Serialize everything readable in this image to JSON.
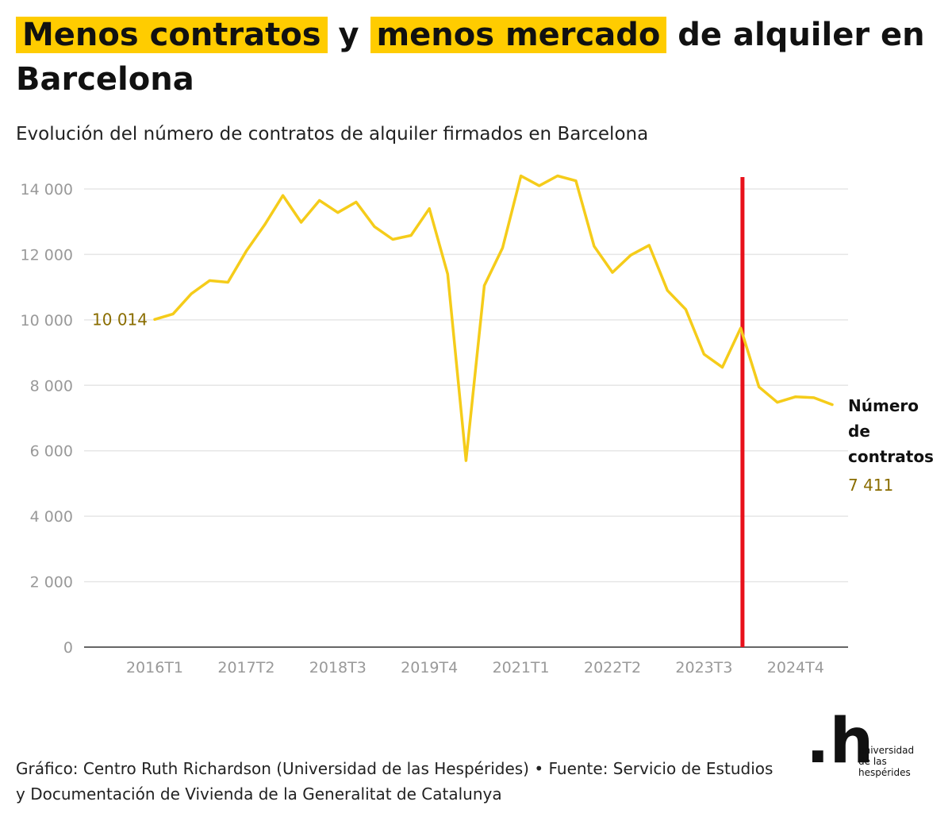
{
  "title": {
    "highlight1": "Menos contratos",
    "connector": "y",
    "highlight2": "menos mercado",
    "rest": "de alquiler en Barcelona"
  },
  "subtitle": "Evolución del número de contratos de alquiler firmados en Barcelona",
  "footer": "Gráfico: Centro Ruth Richardson (Universidad de las Hespérides) • Fuente: Servicio de Estudios y Documentación de Vivienda de la Generalitat de Catalunya",
  "logo": {
    "mark": ".h",
    "line1": "universidad",
    "line2": "de las",
    "line3": "hespérides"
  },
  "colors": {
    "accent": "#ffcc00",
    "line": "#f5cc1a",
    "marker": "#e8111b",
    "label": "#8a6d00",
    "grid": "#e6e6e6",
    "axis_text": "#999999"
  },
  "chart_data": {
    "type": "line",
    "series": [
      {
        "name": "Número de contratos",
        "values": [
          10014,
          10180,
          10800,
          11200,
          11150,
          12100,
          12900,
          13800,
          12980,
          13650,
          13280,
          13600,
          12850,
          12460,
          12580,
          13400,
          11400,
          5700,
          11050,
          12200,
          14400,
          14100,
          14400,
          14250,
          12250,
          11450,
          11980,
          12280,
          10900,
          10320,
          8950,
          8550,
          9750,
          7950,
          7480,
          7650,
          7620,
          7411
        ]
      }
    ],
    "x_ticks": [
      "2016T1",
      "2017T2",
      "2018T3",
      "2019T4",
      "2021T1",
      "2022T2",
      "2023T3",
      "2024T4"
    ],
    "x_tick_indices": [
      0,
      5,
      10,
      15,
      20,
      25,
      30,
      35
    ],
    "y_ticks": [
      0,
      2000,
      4000,
      6000,
      8000,
      10000,
      12000,
      14000
    ],
    "y_tick_labels": [
      "0",
      "2 000",
      "4 000",
      "6 000",
      "8 000",
      "10 000",
      "12 000",
      "14 000"
    ],
    "ylim": [
      0,
      14400
    ],
    "start_label": "10 014",
    "end_series_label": [
      "Número",
      "de",
      "contratos"
    ],
    "end_value_label": "7 411",
    "marker_index": 32.1,
    "xlabel": "",
    "ylabel": ""
  }
}
